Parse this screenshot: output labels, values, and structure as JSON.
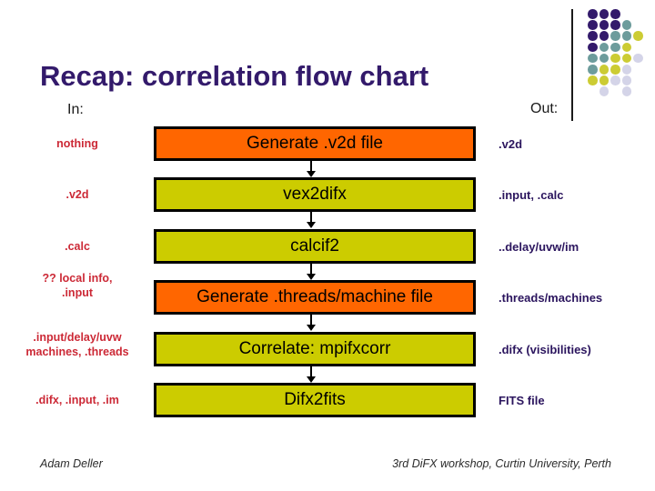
{
  "slide": {
    "title": "Recap: correlation flow chart",
    "in_header": "In:",
    "out_header": "Out:",
    "footer_left": "Adam Deller",
    "footer_right": "3rd DiFX workshop, Curtin University, Perth"
  },
  "palette": {
    "title_purple": "#331A6B",
    "in_label_red": "#CC2936",
    "out_label_purple": "#2B155E",
    "box_orange": "#FF6600",
    "box_olive": "#CCCC00",
    "box_border": "#000000",
    "dot_purple": "#331A6B",
    "dot_teal": "#6D9C9C",
    "dot_yellow": "#CCCC33",
    "dot_lavender": "#D4D4E8"
  },
  "flow": {
    "rows": [
      {
        "in": "nothing",
        "label": "Generate .v2d file",
        "box_color": "#FF6600",
        "out": ".v2d"
      },
      {
        "in": ".v2d",
        "label": "vex2difx",
        "box_color": "#CCCC00",
        "out": ".input, .calc"
      },
      {
        "in": ".calc",
        "label": "calcif2",
        "box_color": "#CCCC00",
        "out": "..delay/uvw/im"
      },
      {
        "in": "?? local info,\n.input",
        "label": "Generate .threads/machine file",
        "box_color": "#FF6600",
        "out": ".threads/machines"
      },
      {
        "in": ".input/delay/uvw\nmachines, .threads",
        "label": "Correlate: mpifxcorr",
        "box_color": "#CCCC00",
        "out": ".difx (visibilities)"
      },
      {
        "in": ".difx, .input, .im",
        "label": "Difx2fits",
        "box_color": "#CCCC00",
        "out": "FITS file"
      }
    ]
  },
  "decoration": {
    "dot_rows": [
      [
        "P",
        "P",
        "P"
      ],
      [
        "P",
        "P",
        "P",
        "T"
      ],
      [
        "P",
        "P",
        "T",
        "T",
        "Y"
      ],
      [
        "P",
        "T",
        "T",
        "Y"
      ],
      [
        "T",
        "T",
        "Y",
        "Y",
        "L"
      ],
      [
        "T",
        "Y",
        "Y",
        "L"
      ],
      [
        "Y",
        "Y",
        "L",
        "L"
      ],
      [
        null,
        "L",
        null,
        "L"
      ]
    ]
  }
}
